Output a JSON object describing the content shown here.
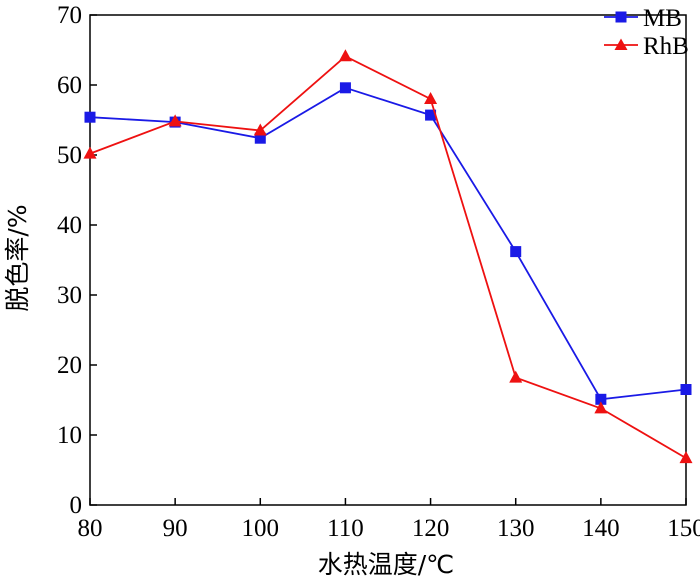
{
  "chart_data": {
    "type": "line",
    "xlabel": "水热温度/℃",
    "ylabel": "脱色率/%",
    "x": [
      80,
      90,
      100,
      110,
      120,
      130,
      140,
      150
    ],
    "xlim": [
      80,
      150
    ],
    "ylim": [
      0,
      70
    ],
    "xticks": [
      "80",
      "90",
      "100",
      "110",
      "120",
      "130",
      "140",
      "150"
    ],
    "yticks": [
      "0",
      "10",
      "20",
      "30",
      "40",
      "50",
      "60",
      "70"
    ],
    "grid": false,
    "legend_position": "top-right",
    "series": [
      {
        "name": "MB",
        "marker": "square",
        "color": "#1a1ae6",
        "values": [
          55.4,
          54.7,
          52.4,
          59.6,
          55.7,
          36.2,
          15.1,
          16.5
        ]
      },
      {
        "name": "RhB",
        "marker": "triangle",
        "color": "#ee1111",
        "values": [
          50.2,
          54.8,
          53.5,
          64.1,
          58.0,
          18.2,
          13.8,
          6.7
        ]
      }
    ]
  }
}
